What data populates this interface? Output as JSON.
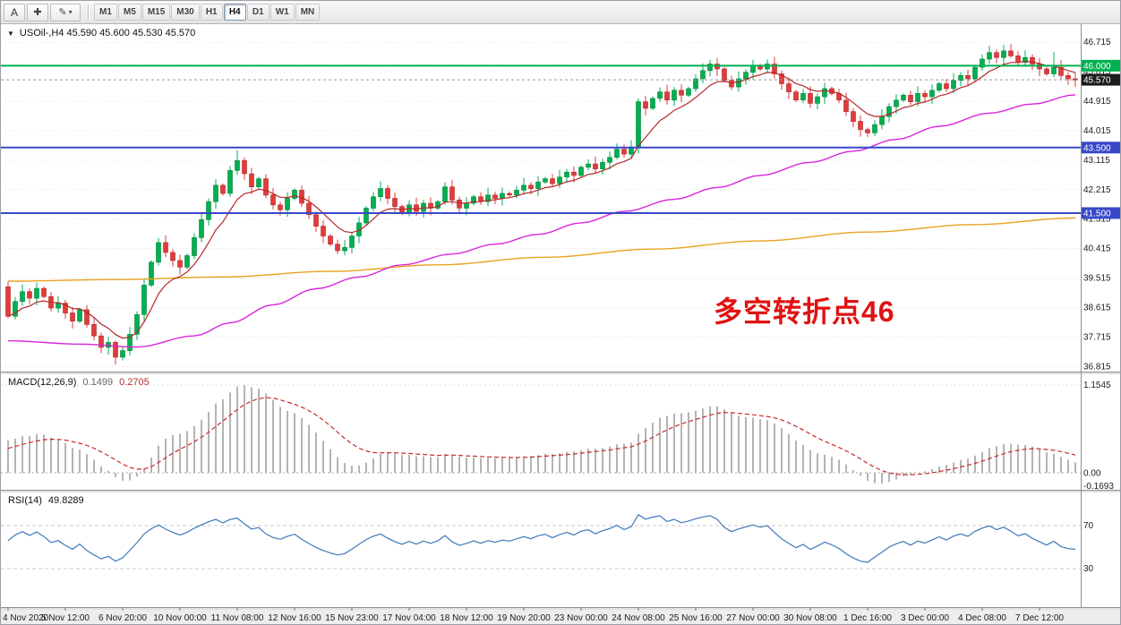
{
  "icons": {
    "expander": "▼",
    "crosshair": "✚",
    "pencil": "✎",
    "caret": "▾"
  },
  "toolbar": {
    "tools": [
      {
        "label": "A"
      },
      {
        "icon": "crosshair"
      },
      {
        "icon": "pencil",
        "has_dropdown": true
      }
    ],
    "timeframes": [
      {
        "label": "M1"
      },
      {
        "label": "M5"
      },
      {
        "label": "M15"
      },
      {
        "label": "M30"
      },
      {
        "label": "H1"
      },
      {
        "label": "H4",
        "active": true
      },
      {
        "label": "D1"
      },
      {
        "label": "W1"
      },
      {
        "label": "MN"
      }
    ]
  },
  "main_chart": {
    "title": "USOil-,H4  45.590 45.600 45.530 45.570",
    "annotation": {
      "text": "多空转折点46",
      "color": "#e01212"
    },
    "axis_labels": [
      "46.715",
      "45.815",
      "44.915",
      "44.015",
      "43.115",
      "42.215",
      "41.315",
      "40.415",
      "39.515",
      "38.615",
      "37.715",
      "36.815"
    ],
    "hlines": [
      {
        "price": 46.0,
        "label": "46.000",
        "color": "#00b050"
      },
      {
        "price": 43.5,
        "label": "43.500",
        "color": "#3848c8"
      },
      {
        "price": 41.5,
        "label": "41.500",
        "color": "#3848c8"
      }
    ],
    "current_price": {
      "value": 45.57,
      "label": "45.570",
      "badge_color": "#1c1c1c"
    }
  },
  "chart_data": {
    "type": "candlestick+indicators",
    "symbol": "USOil-",
    "timeframe": "H4",
    "ohlc_current": {
      "open": 45.59,
      "high": 45.6,
      "low": 45.53,
      "close": 45.57
    },
    "ylim": [
      36.66,
      47.24
    ],
    "x_labels": [
      "4 Nov 2020",
      "5 Nov 12:00",
      "6 Nov 20:00",
      "10 Nov 00:00",
      "11 Nov 08:00",
      "12 Nov 16:00",
      "15 Nov 23:00",
      "17 Nov 04:00",
      "18 Nov 12:00",
      "19 Nov 20:00",
      "23 Nov 00:00",
      "24 Nov 08:00",
      "25 Nov 16:00",
      "27 Nov 00:00",
      "30 Nov 08:00",
      "1 Dec 16:00",
      "3 Dec 00:00",
      "4 Dec 08:00",
      "7 Dec 12:00"
    ],
    "candles": {
      "first_open": 39.25,
      "closes": [
        38.35,
        38.8,
        39.1,
        38.9,
        39.2,
        38.95,
        38.6,
        38.75,
        38.45,
        38.2,
        38.55,
        38.1,
        37.75,
        37.4,
        37.55,
        37.1,
        37.3,
        37.8,
        38.4,
        39.3,
        40.0,
        40.6,
        40.3,
        40.05,
        39.85,
        40.2,
        40.75,
        41.3,
        41.85,
        42.35,
        42.1,
        42.8,
        43.1,
        42.7,
        42.3,
        42.55,
        42.05,
        41.75,
        41.6,
        41.95,
        42.2,
        41.8,
        41.45,
        41.1,
        40.8,
        40.55,
        40.35,
        40.45,
        40.8,
        41.2,
        41.65,
        42.0,
        42.25,
        41.95,
        41.7,
        41.5,
        41.75,
        41.55,
        41.8,
        41.65,
        41.85,
        42.3,
        41.9,
        41.65,
        41.8,
        42.0,
        41.85,
        42.05,
        41.95,
        42.1,
        42.05,
        42.2,
        42.35,
        42.25,
        42.45,
        42.55,
        42.4,
        42.6,
        42.75,
        42.65,
        42.9,
        43.0,
        42.85,
        43.05,
        43.2,
        43.45,
        43.3,
        43.5,
        44.9,
        44.7,
        45.0,
        45.2,
        44.95,
        45.25,
        45.1,
        45.3,
        45.6,
        45.85,
        46.05,
        45.9,
        45.55,
        45.35,
        45.6,
        45.8,
        46.0,
        45.9,
        46.05,
        45.75,
        45.45,
        45.2,
        44.95,
        45.15,
        44.85,
        45.05,
        45.3,
        45.15,
        44.95,
        44.6,
        44.3,
        44.05,
        43.95,
        44.2,
        44.45,
        44.75,
        44.95,
        45.1,
        44.9,
        45.15,
        45.05,
        45.25,
        45.45,
        45.3,
        45.55,
        45.7,
        45.6,
        45.95,
        46.2,
        46.4,
        46.25,
        46.45,
        46.3,
        46.1,
        46.25,
        46.05,
        45.9,
        45.75,
        45.95,
        45.7,
        45.6,
        45.57
      ],
      "spikes": [
        {
          "i": 0,
          "high": 39.42
        },
        {
          "i": 15,
          "low": 36.87
        },
        {
          "i": 32,
          "high": 43.42
        },
        {
          "i": 85,
          "high": 43.62
        },
        {
          "i": 98,
          "high": 46.18
        },
        {
          "i": 120,
          "low": 43.82
        },
        {
          "i": 137,
          "high": 46.6
        },
        {
          "i": 140,
          "high": 46.66
        },
        {
          "i": 146,
          "high": 46.42
        }
      ]
    },
    "moving_averages": [
      {
        "name": "fast-ma-red",
        "color": "#b42828",
        "type": "ema",
        "period": 8
      },
      {
        "name": "mid-ma-magenta",
        "color": "#d926d9",
        "anchors": [
          [
            0,
            37.6
          ],
          [
            10,
            37.5
          ],
          [
            18,
            37.41
          ],
          [
            26,
            37.75
          ],
          [
            31,
            38.15
          ],
          [
            37,
            38.7
          ],
          [
            43,
            39.19
          ],
          [
            49,
            39.55
          ],
          [
            55,
            39.92
          ],
          [
            62,
            40.25
          ],
          [
            68,
            40.55
          ],
          [
            74,
            40.85
          ],
          [
            80,
            41.2
          ],
          [
            86,
            41.55
          ],
          [
            93,
            41.92
          ],
          [
            99,
            42.28
          ],
          [
            105,
            42.65
          ],
          [
            112,
            43.05
          ],
          [
            118,
            43.39
          ],
          [
            124,
            43.75
          ],
          [
            130,
            44.15
          ],
          [
            137,
            44.55
          ],
          [
            143,
            44.83
          ],
          [
            149,
            45.11
          ]
        ]
      },
      {
        "name": "slow-ma-orange",
        "color": "#e8a21e",
        "anchors": [
          [
            0,
            39.42
          ],
          [
            15,
            39.47
          ],
          [
            30,
            39.55
          ],
          [
            45,
            39.72
          ],
          [
            60,
            39.92
          ],
          [
            75,
            40.15
          ],
          [
            90,
            40.4
          ],
          [
            105,
            40.65
          ],
          [
            120,
            40.92
          ],
          [
            135,
            41.15
          ],
          [
            149,
            41.35
          ]
        ]
      }
    ],
    "macd": {
      "label": "MACD(12,26,9)",
      "value_main": "0.1499",
      "value_signal": "0.2705",
      "axis_labels": [
        "1.1545",
        "0.00",
        "-0.1693"
      ],
      "axis_values": [
        1.1545,
        0,
        -0.1693
      ]
    },
    "rsi": {
      "label": "RSI(14)",
      "value": "49.8289",
      "levels": [
        "70",
        "30"
      ],
      "level_values": [
        70,
        30
      ]
    }
  },
  "style": {
    "candle_up": "#00b050",
    "candle_up_border": "#00813a",
    "candle_down": "#e23b3b",
    "candle_down_border": "#b02525",
    "macd_hist": "#b4b4b4",
    "macd_signal": "#cc2929",
    "rsi_line": "#3f78b8",
    "grid_line": "#e0e0e0"
  }
}
